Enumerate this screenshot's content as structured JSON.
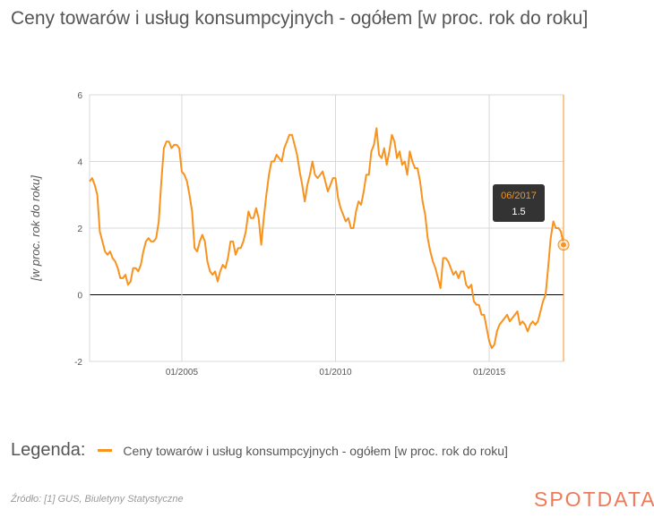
{
  "title": "Ceny towarów i usług konsumpcyjnych - ogółem [w proc. rok do roku]",
  "legend": {
    "heading": "Legenda:",
    "entry": "Ceny towarów i usług konsumpcyjnych - ogółem [w proc. rok do roku]"
  },
  "source": "Źródło: [1] GUS, Biuletyny Statystyczne",
  "logo": "SPOTDATA",
  "colors": {
    "series": "#f7931e",
    "tooltip_bg": "#333333",
    "logo": "#ef7a5a"
  },
  "chart_data": {
    "type": "line",
    "ylabel": "[w proc. rok do roku]",
    "xlabel": "",
    "ylim": [
      -2,
      6
    ],
    "y_ticks": [
      -2,
      0,
      2,
      4,
      6
    ],
    "x_ticks": [
      "01/2005",
      "01/2010",
      "01/2015"
    ],
    "x_range": [
      "2002-01",
      "2017-06"
    ],
    "grid": true,
    "legend_position": "bottom-left",
    "tooltip": {
      "date": "06/2017",
      "value": "1.5"
    },
    "series": [
      {
        "name": "Ceny towarów i usług konsumpcyjnych - ogółem [w proc. rok do roku]",
        "x": [
          "2002-01",
          "2002-02",
          "2002-03",
          "2002-04",
          "2002-05",
          "2002-06",
          "2002-07",
          "2002-08",
          "2002-09",
          "2002-10",
          "2002-11",
          "2002-12",
          "2003-01",
          "2003-02",
          "2003-03",
          "2003-04",
          "2003-05",
          "2003-06",
          "2003-07",
          "2003-08",
          "2003-09",
          "2003-10",
          "2003-11",
          "2003-12",
          "2004-01",
          "2004-02",
          "2004-03",
          "2004-04",
          "2004-05",
          "2004-06",
          "2004-07",
          "2004-08",
          "2004-09",
          "2004-10",
          "2004-11",
          "2004-12",
          "2005-01",
          "2005-02",
          "2005-03",
          "2005-04",
          "2005-05",
          "2005-06",
          "2005-07",
          "2005-08",
          "2005-09",
          "2005-10",
          "2005-11",
          "2005-12",
          "2006-01",
          "2006-02",
          "2006-03",
          "2006-04",
          "2006-05",
          "2006-06",
          "2006-07",
          "2006-08",
          "2006-09",
          "2006-10",
          "2006-11",
          "2006-12",
          "2007-01",
          "2007-02",
          "2007-03",
          "2007-04",
          "2007-05",
          "2007-06",
          "2007-07",
          "2007-08",
          "2007-09",
          "2007-10",
          "2007-11",
          "2007-12",
          "2008-01",
          "2008-02",
          "2008-03",
          "2008-04",
          "2008-05",
          "2008-06",
          "2008-07",
          "2008-08",
          "2008-09",
          "2008-10",
          "2008-11",
          "2008-12",
          "2009-01",
          "2009-02",
          "2009-03",
          "2009-04",
          "2009-05",
          "2009-06",
          "2009-07",
          "2009-08",
          "2009-09",
          "2009-10",
          "2009-11",
          "2009-12",
          "2010-01",
          "2010-02",
          "2010-03",
          "2010-04",
          "2010-05",
          "2010-06",
          "2010-07",
          "2010-08",
          "2010-09",
          "2010-10",
          "2010-11",
          "2010-12",
          "2011-01",
          "2011-02",
          "2011-03",
          "2011-04",
          "2011-05",
          "2011-06",
          "2011-07",
          "2011-08",
          "2011-09",
          "2011-10",
          "2011-11",
          "2011-12",
          "2012-01",
          "2012-02",
          "2012-03",
          "2012-04",
          "2012-05",
          "2012-06",
          "2012-07",
          "2012-08",
          "2012-09",
          "2012-10",
          "2012-11",
          "2012-12",
          "2013-01",
          "2013-02",
          "2013-03",
          "2013-04",
          "2013-05",
          "2013-06",
          "2013-07",
          "2013-08",
          "2013-09",
          "2013-10",
          "2013-11",
          "2013-12",
          "2014-01",
          "2014-02",
          "2014-03",
          "2014-04",
          "2014-05",
          "2014-06",
          "2014-07",
          "2014-08",
          "2014-09",
          "2014-10",
          "2014-11",
          "2014-12",
          "2015-01",
          "2015-02",
          "2015-03",
          "2015-04",
          "2015-05",
          "2015-06",
          "2015-07",
          "2015-08",
          "2015-09",
          "2015-10",
          "2015-11",
          "2015-12",
          "2016-01",
          "2016-02",
          "2016-03",
          "2016-04",
          "2016-05",
          "2016-06",
          "2016-07",
          "2016-08",
          "2016-09",
          "2016-10",
          "2016-11",
          "2016-12",
          "2017-01",
          "2017-02",
          "2017-03",
          "2017-04",
          "2017-05",
          "2017-06"
        ],
        "values": [
          3.4,
          3.5,
          3.3,
          3.0,
          1.9,
          1.6,
          1.3,
          1.2,
          1.3,
          1.1,
          1.0,
          0.8,
          0.5,
          0.5,
          0.6,
          0.3,
          0.4,
          0.8,
          0.8,
          0.7,
          0.9,
          1.3,
          1.6,
          1.7,
          1.6,
          1.6,
          1.7,
          2.2,
          3.4,
          4.4,
          4.6,
          4.6,
          4.4,
          4.5,
          4.5,
          4.4,
          3.7,
          3.6,
          3.4,
          3.0,
          2.5,
          1.4,
          1.3,
          1.6,
          1.8,
          1.6,
          1.0,
          0.7,
          0.6,
          0.7,
          0.4,
          0.7,
          0.9,
          0.8,
          1.1,
          1.6,
          1.6,
          1.2,
          1.4,
          1.4,
          1.6,
          1.9,
          2.5,
          2.3,
          2.3,
          2.6,
          2.3,
          1.5,
          2.3,
          3.0,
          3.6,
          4.0,
          4.0,
          4.2,
          4.1,
          4.0,
          4.4,
          4.6,
          4.8,
          4.8,
          4.5,
          4.2,
          3.7,
          3.3,
          2.8,
          3.3,
          3.6,
          4.0,
          3.6,
          3.5,
          3.6,
          3.7,
          3.4,
          3.1,
          3.3,
          3.5,
          3.5,
          2.9,
          2.6,
          2.4,
          2.2,
          2.3,
          2.0,
          2.0,
          2.5,
          2.8,
          2.7,
          3.1,
          3.6,
          3.6,
          4.3,
          4.5,
          5.0,
          4.2,
          4.1,
          4.4,
          3.9,
          4.3,
          4.8,
          4.6,
          4.1,
          4.3,
          3.9,
          4.0,
          3.6,
          4.3,
          4.0,
          3.8,
          3.8,
          3.4,
          2.8,
          2.4,
          1.7,
          1.3,
          1.0,
          0.8,
          0.5,
          0.2,
          1.1,
          1.1,
          1.0,
          0.8,
          0.6,
          0.7,
          0.5,
          0.7,
          0.7,
          0.3,
          0.2,
          0.3,
          -0.2,
          -0.3,
          -0.3,
          -0.6,
          -0.6,
          -1.0,
          -1.4,
          -1.6,
          -1.5,
          -1.1,
          -0.9,
          -0.8,
          -0.7,
          -0.6,
          -0.8,
          -0.7,
          -0.6,
          -0.5,
          -0.9,
          -0.8,
          -0.9,
          -1.1,
          -0.9,
          -0.8,
          -0.9,
          -0.8,
          -0.5,
          -0.2,
          0.0,
          0.8,
          1.7,
          2.2,
          2.0,
          2.0,
          1.9,
          1.5
        ]
      }
    ]
  }
}
